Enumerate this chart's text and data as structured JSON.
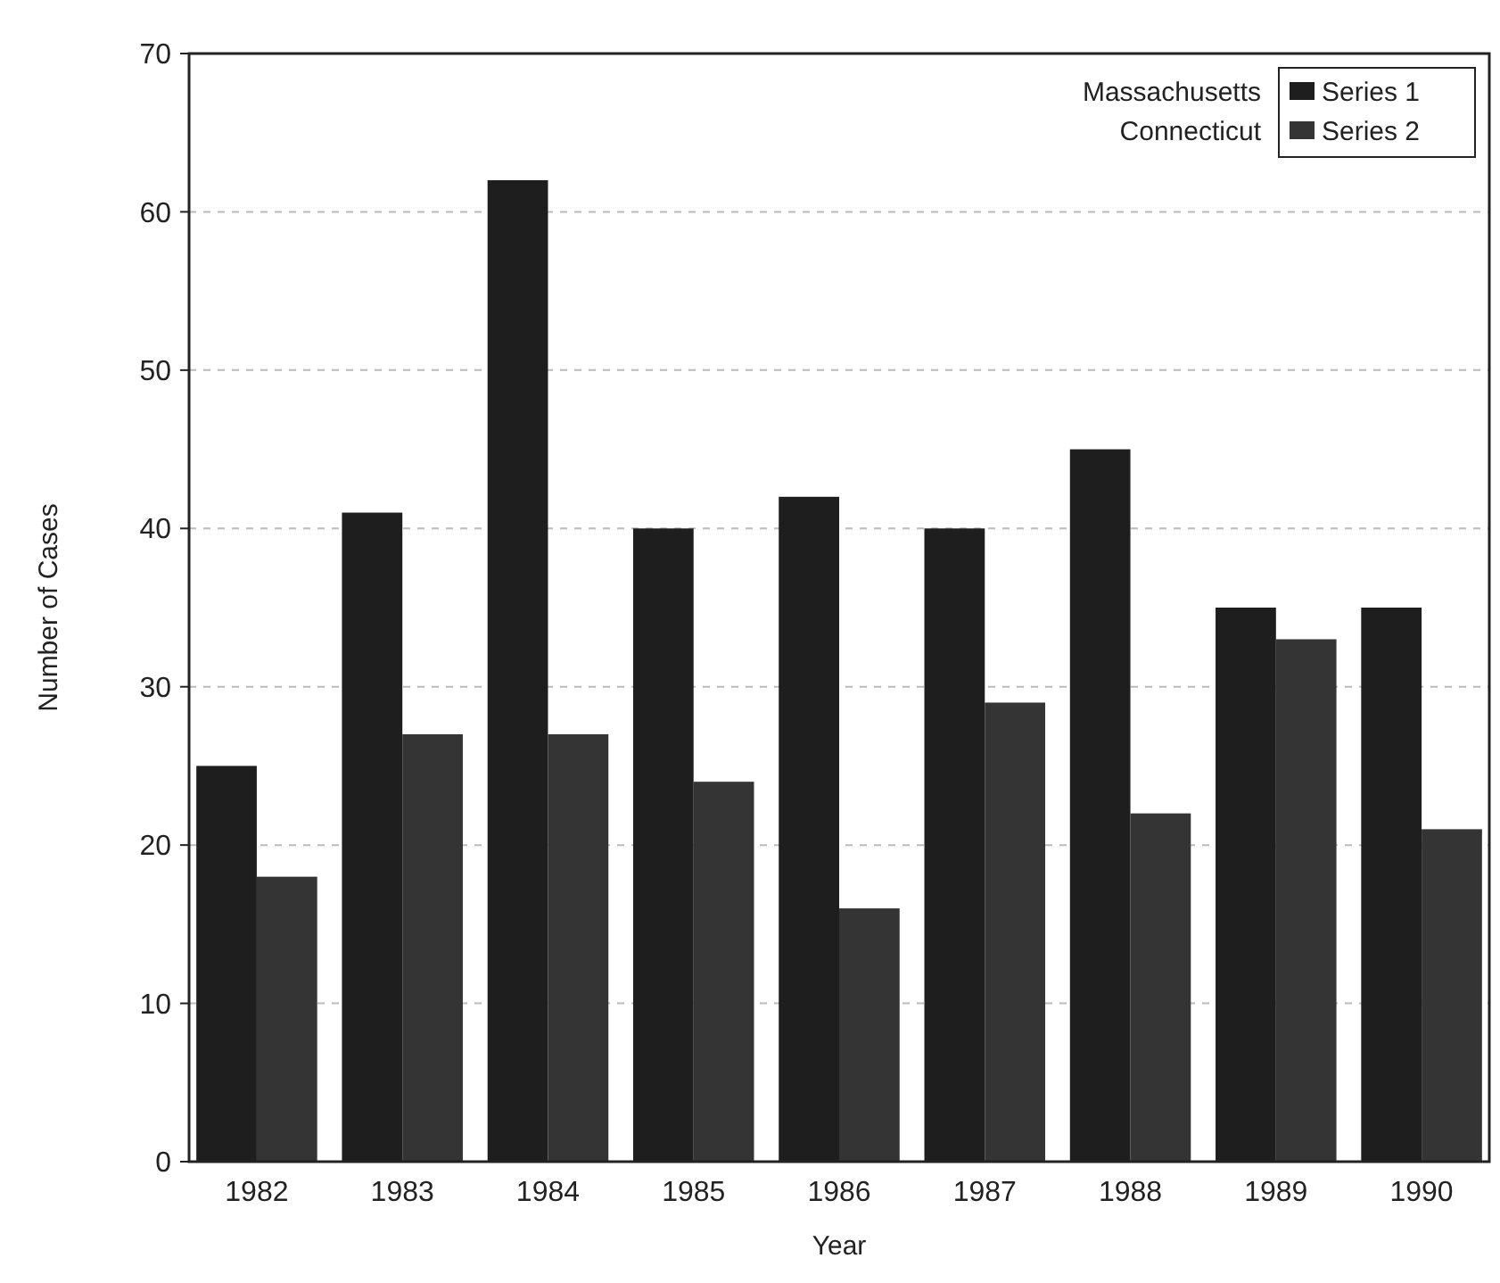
{
  "chart_data": {
    "type": "bar",
    "xlabel": "Year",
    "ylabel": "Number of Cases",
    "categories": [
      "1982",
      "1983",
      "1984",
      "1985",
      "1986",
      "1987",
      "1988",
      "1989",
      "1990"
    ],
    "series": [
      {
        "name": "Series 1",
        "color": "#1e1e1e",
        "values": [
          25,
          41,
          62,
          40,
          42,
          40,
          45,
          35,
          35
        ]
      },
      {
        "name": "Series 2",
        "color": "#343434",
        "values": [
          18,
          27,
          27,
          24,
          16,
          29,
          22,
          33,
          21
        ]
      }
    ],
    "ylim": [
      0,
      70
    ],
    "yticks": [
      0,
      10,
      20,
      30,
      40,
      50,
      60,
      70
    ],
    "grid": "y",
    "legend": "top right",
    "annotations": [
      "Massachusetts",
      "Connecticut"
    ]
  }
}
